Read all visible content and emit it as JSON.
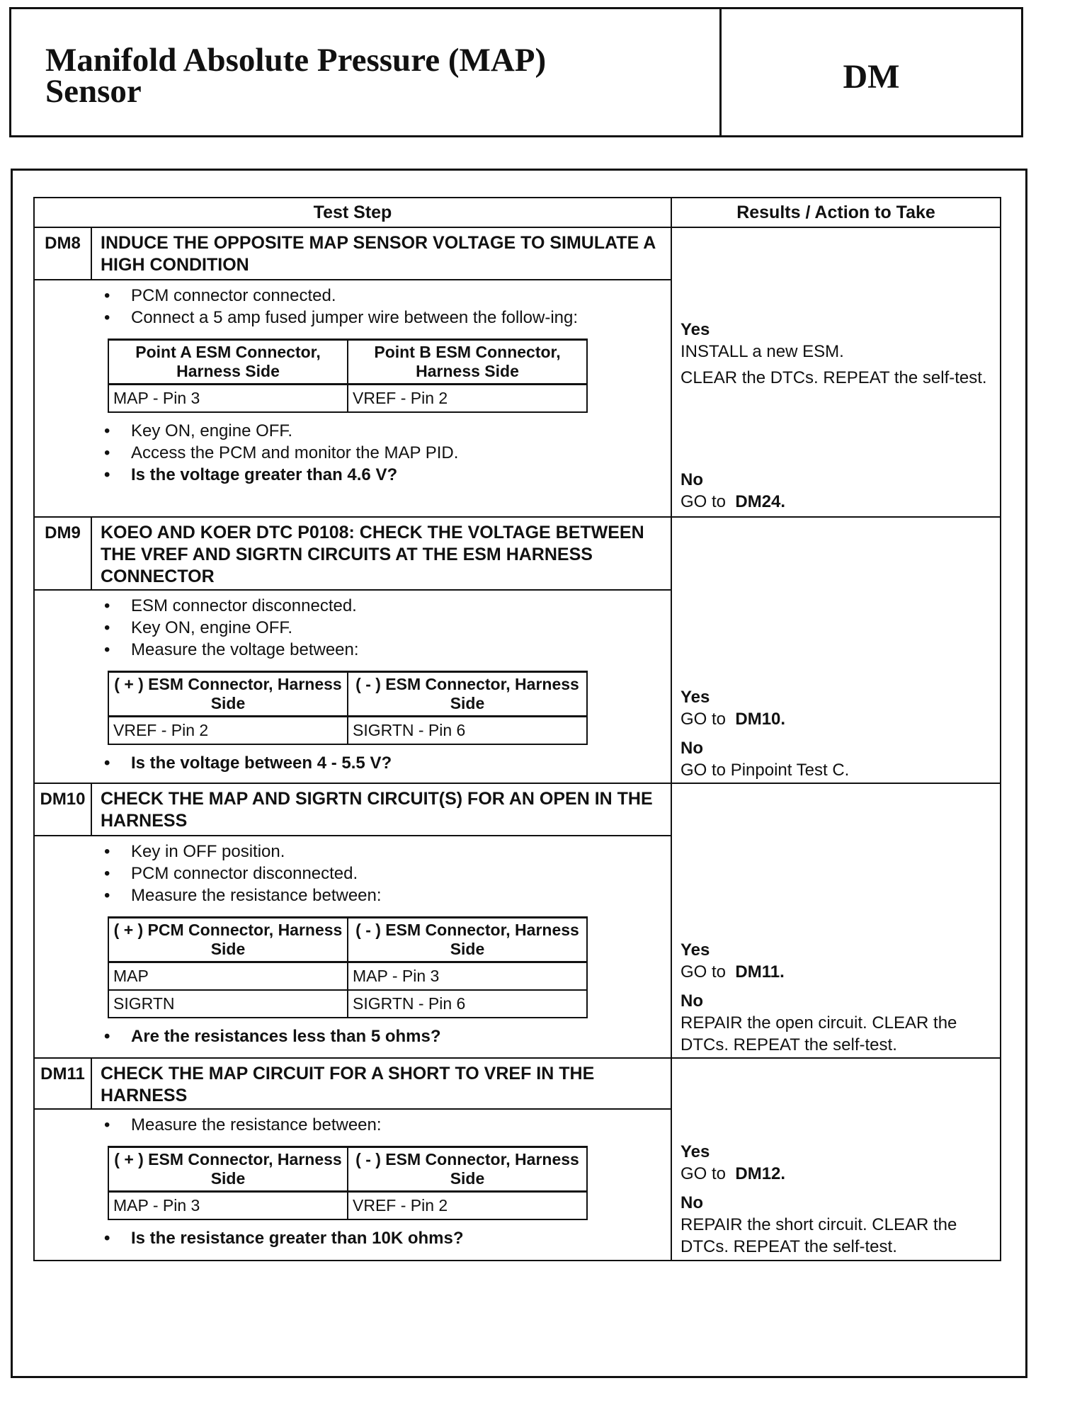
{
  "header": {
    "title_line1": "Manifold Absolute Pressure (MAP)",
    "title_line2": "Sensor",
    "code": "DM"
  },
  "table": {
    "col_test_step": "Test Step",
    "col_results": "Results / Action to Take",
    "steps": [
      {
        "id": "DM8",
        "title": "INDUCE THE OPPOSITE MAP SENSOR VOLTAGE TO SIMULATE A HIGH CONDITION",
        "bullets_before": [
          "PCM connector connected.",
          "Connect a 5 amp fused jumper wire between the follow-ing:"
        ],
        "inner_table": {
          "headers": [
            "Point A ESM Connector, Harness Side",
            "Point B ESM Connector, Harness Side"
          ],
          "rows": [
            [
              "MAP - Pin 3",
              "VREF - Pin 2"
            ]
          ]
        },
        "bullets_after": [
          "Key ON, engine OFF.",
          "Access the PCM and monitor the MAP PID."
        ],
        "question": "Is the voltage greater than 4.6 V?",
        "yes_label": "Yes",
        "yes_action_1": "INSTALL a new ESM.",
        "yes_action_2": "CLEAR the DTCs. REPEAT the self-test.",
        "no_label": "No",
        "no_prefix": "GO to",
        "no_target": "DM24."
      },
      {
        "id": "DM9",
        "title": "KOEO AND KOER DTC P0108: CHECK THE VOLTAGE BETWEEN THE VREF AND SIGRTN CIRCUITS AT THE ESM HARNESS CONNECTOR",
        "bullets_before": [
          "ESM connector disconnected.",
          "Key ON, engine OFF.",
          "Measure the voltage between:"
        ],
        "inner_table": {
          "headers": [
            "( + ) ESM Connector, Harness Side",
            "( - ) ESM Connector, Harness Side"
          ],
          "rows": [
            [
              "VREF - Pin 2",
              "SIGRTN - Pin 6"
            ]
          ]
        },
        "question": "Is the voltage between 4 - 5.5 V?",
        "yes_label": "Yes",
        "yes_prefix": "GO to",
        "yes_target": "DM10.",
        "no_label": "No",
        "no_action": "GO to Pinpoint Test C."
      },
      {
        "id": "DM10",
        "title": "CHECK THE MAP AND SIGRTN CIRCUIT(S) FOR AN OPEN IN THE HARNESS",
        "bullets_before": [
          "Key in OFF position.",
          "PCM connector disconnected.",
          "Measure the resistance between:"
        ],
        "inner_table": {
          "headers": [
            "( + ) PCM Connector, Harness Side",
            "( - ) ESM Connector, Harness Side"
          ],
          "rows": [
            [
              "MAP",
              "MAP - Pin 3"
            ],
            [
              "SIGRTN",
              "SIGRTN - Pin 6"
            ]
          ]
        },
        "question": "Are the resistances less than 5 ohms?",
        "yes_label": "Yes",
        "yes_prefix": "GO to",
        "yes_target": "DM11.",
        "no_label": "No",
        "no_action": "REPAIR the open circuit. CLEAR the DTCs. REPEAT the self-test."
      },
      {
        "id": "DM11",
        "title": "CHECK THE MAP CIRCUIT FOR A SHORT TO VREF IN THE HARNESS",
        "bullets_before": [
          "Measure the resistance between:"
        ],
        "inner_table": {
          "headers": [
            "( + ) ESM Connector, Harness Side",
            "( - ) ESM Connector, Harness Side"
          ],
          "rows": [
            [
              "MAP - Pin 3",
              "VREF - Pin 2"
            ]
          ]
        },
        "question": "Is the resistance greater than 10K ohms?",
        "yes_label": "Yes",
        "yes_prefix": "GO to",
        "yes_target": "DM12.",
        "no_label": "No",
        "no_action": "REPAIR the short circuit. CLEAR the DTCs. REPEAT the self-test."
      }
    ]
  }
}
